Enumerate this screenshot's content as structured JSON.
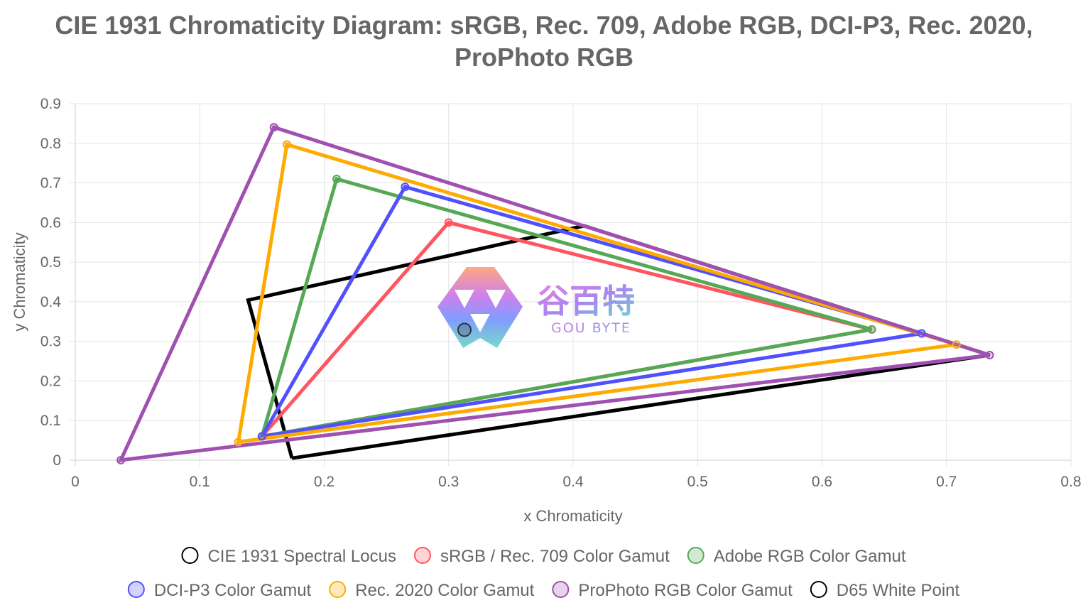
{
  "chart_data": {
    "type": "scatter",
    "title": [
      "CIE 1931 Chromaticity Diagram: sRGB, Rec. 709, Adobe RGB, DCI-P3, Rec. 2020,",
      "ProPhoto RGB"
    ],
    "xlabel": "x Chromaticity",
    "ylabel": "y Chromaticity",
    "xlim": [
      0,
      0.8
    ],
    "ylim": [
      0,
      0.9
    ],
    "x_ticks": [
      "0",
      "0.1",
      "0.2",
      "0.3",
      "0.4",
      "0.5",
      "0.6",
      "0.7",
      "0.8"
    ],
    "y_ticks": [
      "0",
      "0.1",
      "0.2",
      "0.3",
      "0.4",
      "0.5",
      "0.6",
      "0.7",
      "0.8",
      "0.9"
    ],
    "grid": true,
    "legend_position": "bottom",
    "series": [
      {
        "name": "CIE 1931 Spectral Locus",
        "color": "#000000",
        "show_points": false,
        "points": [
          [
            0.1741,
            0.005
          ],
          [
            0.7347,
            0.2653
          ],
          [
            0.4087,
            0.5917
          ],
          [
            0.1389,
            0.4041
          ],
          [
            0.1741,
            0.005
          ]
        ]
      },
      {
        "name": "sRGB / Rec. 709 Color Gamut",
        "color": "#ff5560",
        "show_points": true,
        "points": [
          [
            0.64,
            0.33
          ],
          [
            0.3,
            0.6
          ],
          [
            0.15,
            0.06
          ],
          [
            0.64,
            0.33
          ]
        ]
      },
      {
        "name": "Adobe RGB Color Gamut",
        "color": "#55a955",
        "show_points": true,
        "points": [
          [
            0.64,
            0.33
          ],
          [
            0.21,
            0.71
          ],
          [
            0.15,
            0.06
          ],
          [
            0.64,
            0.33
          ]
        ]
      },
      {
        "name": "DCI-P3 Color Gamut",
        "color": "#5050ff",
        "show_points": true,
        "points": [
          [
            0.68,
            0.32
          ],
          [
            0.265,
            0.69
          ],
          [
            0.15,
            0.06
          ],
          [
            0.68,
            0.32
          ]
        ]
      },
      {
        "name": "Rec. 2020 Color Gamut",
        "color": "#ffaa00",
        "show_points": true,
        "points": [
          [
            0.708,
            0.292
          ],
          [
            0.17,
            0.797
          ],
          [
            0.131,
            0.046
          ],
          [
            0.708,
            0.292
          ]
        ]
      },
      {
        "name": "ProPhoto RGB Color Gamut",
        "color": "#a050b0",
        "show_points": true,
        "points": [
          [
            0.7347,
            0.2653
          ],
          [
            0.1596,
            0.8404
          ],
          [
            0.0366,
            0.0001
          ],
          [
            0.7347,
            0.2653
          ]
        ]
      },
      {
        "name": "D65 White Point",
        "color": "#333333",
        "show_points": true,
        "points": [
          [
            0.3127,
            0.329
          ]
        ]
      }
    ]
  },
  "watermark": {
    "text_cn": "谷百特",
    "text_en": "GOU BYTE"
  }
}
